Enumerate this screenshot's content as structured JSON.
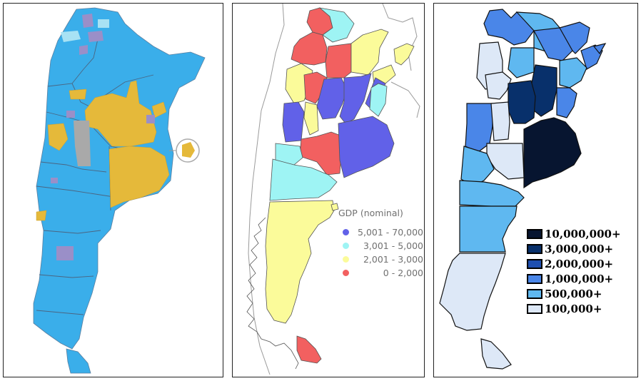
{
  "panels": [
    {
      "id": "election-map"
    },
    {
      "id": "gdp-map"
    },
    {
      "id": "population-map"
    }
  ],
  "gdp_legend": {
    "title": "GDP (nominal)",
    "items": [
      {
        "label": "5,001 - 70,000",
        "color": "#6161e8"
      },
      {
        "label": "3,001 - 5,000",
        "color": "#9ef4f4"
      },
      {
        "label": "2,001 - 3,000",
        "color": "#fbfb9a"
      },
      {
        "label": "0 - 2,000",
        "color": "#f26060"
      }
    ]
  },
  "population_legend": {
    "items": [
      {
        "label": "10,000,000+",
        "color": "#071530"
      },
      {
        "label": "3,000,000+",
        "color": "#08306b"
      },
      {
        "label": "2,000,000+",
        "color": "#1e4fb0"
      },
      {
        "label": "1,000,000+",
        "color": "#4a86e8"
      },
      {
        "label": "500,000+",
        "color": "#5fb8f0"
      },
      {
        "label": "100,000+",
        "color": "#dde8f7"
      }
    ]
  },
  "colors": {
    "election_blue": "#3aaeea",
    "election_gold": "#e5b93a",
    "election_purple": "#9a8fc8",
    "election_gray": "#a9a9a9",
    "gdp_blue": "#6161e8",
    "gdp_cyan": "#9ef4f4",
    "gdp_yellow": "#fbfb9a",
    "gdp_red": "#f26060"
  }
}
